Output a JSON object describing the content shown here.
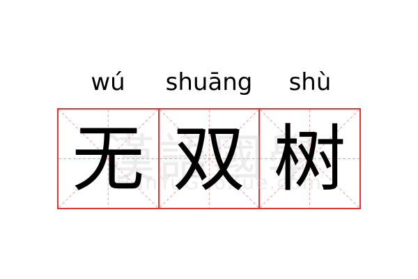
{
  "pinyin": [
    "wú",
    "shuāng",
    "shù"
  ],
  "characters": [
    "无",
    "双",
    "树"
  ],
  "watermark": {
    "chinese": "漢語國學",
    "latin": "HanYuGuoXue.com"
  },
  "colors": {
    "grid_border": "#f03030",
    "guide_lines": "#f5a0a0",
    "text": "#000000"
  }
}
